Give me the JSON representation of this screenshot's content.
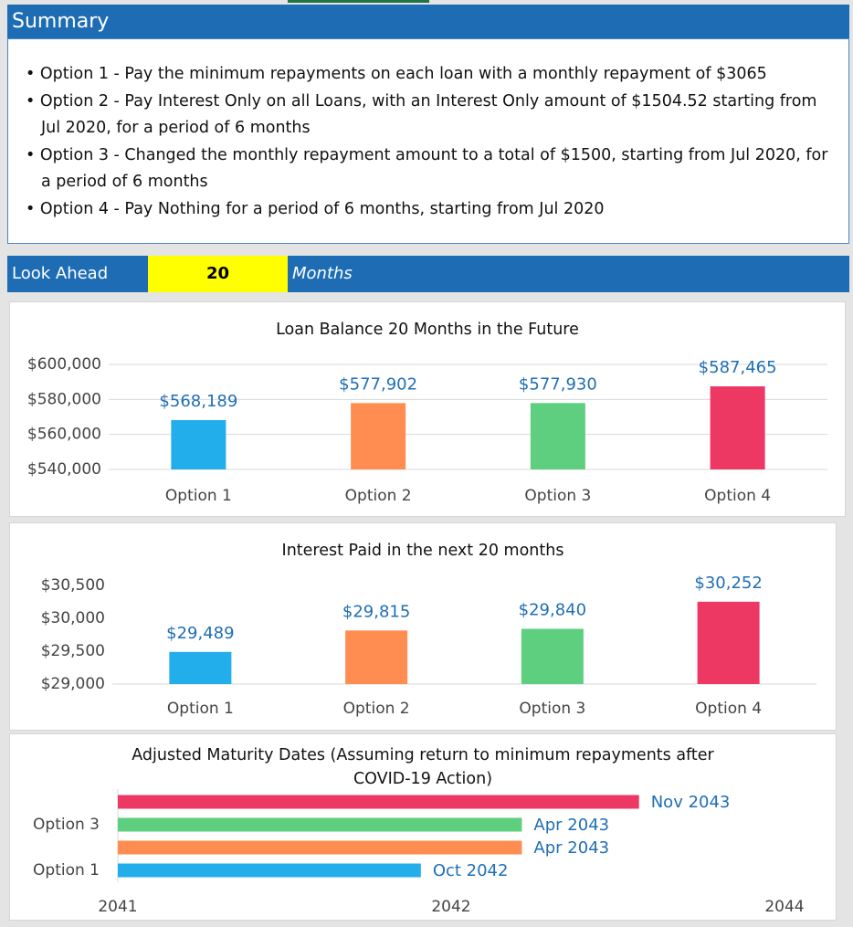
{
  "summary": {
    "title": "Summary",
    "bullets": [
      "Option 1 - Pay the minimum repayments on each loan with a monthly repayment of $3065",
      "Option 2 - Pay Interest Only on all Loans, with an Interest Only amount of $1504.52 starting from Jul 2020, for a period of 6 months",
      "Option 3 - Changed the monthly repayment amount to a total of $1500, starting from Jul 2020, for a period of 6 months",
      "Option 4 - Pay Nothing for a period of 6 months, starting from Jul 2020"
    ]
  },
  "look_ahead": {
    "label": "Look Ahead",
    "value": 20,
    "unit": "Months"
  },
  "chart_data": [
    {
      "type": "bar",
      "title": "Loan Balance 20 Months in the Future",
      "categories": [
        "Option 1",
        "Option 2",
        "Option 3",
        "Option 4"
      ],
      "values": [
        568189,
        577902,
        577930,
        587465
      ],
      "value_labels": [
        "$568,189",
        "$577,902",
        "$577,930",
        "$587,465"
      ],
      "colors": [
        "#22aeea",
        "#ff8d52",
        "#5dcf7e",
        "#ee3864"
      ],
      "ylim": [
        540000,
        600000
      ],
      "yticks": [
        {
          "value": 540000,
          "label": "$540,000"
        },
        {
          "value": 560000,
          "label": "$560,000"
        },
        {
          "value": 580000,
          "label": "$580,000"
        },
        {
          "value": 600000,
          "label": "$600,000"
        }
      ],
      "grid": true
    },
    {
      "type": "bar",
      "title": "Interest Paid in the next 20 months",
      "categories": [
        "Option 1",
        "Option 2",
        "Option 3",
        "Option 4"
      ],
      "values": [
        29489,
        29815,
        29840,
        30252
      ],
      "value_labels": [
        "$29,489",
        "$29,815",
        "$29,840",
        "$30,252"
      ],
      "colors": [
        "#22aeea",
        "#ff8d52",
        "#5dcf7e",
        "#ee3864"
      ],
      "ylim": [
        29000,
        30500
      ],
      "yticks": [
        {
          "value": 29000,
          "label": "$29,000"
        },
        {
          "value": 29500,
          "label": "$29,500"
        },
        {
          "value": 30000,
          "label": "$30,000"
        },
        {
          "value": 30500,
          "label": "$30,500"
        }
      ],
      "grid": false
    },
    {
      "type": "barh",
      "title": "Adjusted Maturity Dates (Assuming return to minimum repayments after COVID-19 Action)",
      "categories": [
        "Option 1",
        null,
        "Option 3",
        null
      ],
      "values": [
        2042.75,
        2043.25,
        2043.25,
        2043.83
      ],
      "value_labels": [
        "Oct 2042",
        "Apr 2043",
        "Apr 2043",
        "Nov 2043"
      ],
      "colors": [
        "#22aeea",
        "#ff8d52",
        "#5dcf7e",
        "#ee3864"
      ],
      "xlim": [
        2041.25,
        2044.55
      ],
      "xticks": [
        {
          "value": 2041.25,
          "label": "2041"
        },
        {
          "value": 2042.9,
          "label": "2042"
        },
        {
          "value": 2044.55,
          "label": "2044"
        }
      ],
      "grid": false
    }
  ]
}
